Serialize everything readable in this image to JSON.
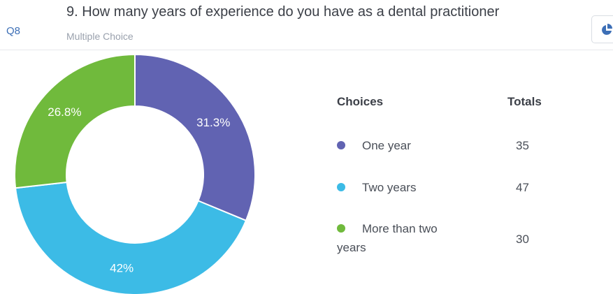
{
  "question": {
    "number": "Q8",
    "title": "9. How many years of experience do you have as a dental practitioner",
    "type": "Multiple Choice"
  },
  "toolbar": {
    "chart_toggle_icon": "pie-chart-icon"
  },
  "legend": {
    "choices_header": "Choices",
    "totals_header": "Totals"
  },
  "chart_data": {
    "type": "pie",
    "donut": true,
    "categories": [
      "One year",
      "Two years",
      "More than two years"
    ],
    "values": [
      35,
      47,
      30
    ],
    "slice_labels": [
      "31.3%",
      "42%",
      "26.8%"
    ],
    "colors": [
      "#6163b2",
      "#3cbbe6",
      "#70ba3c"
    ],
    "legend_position": "right"
  }
}
